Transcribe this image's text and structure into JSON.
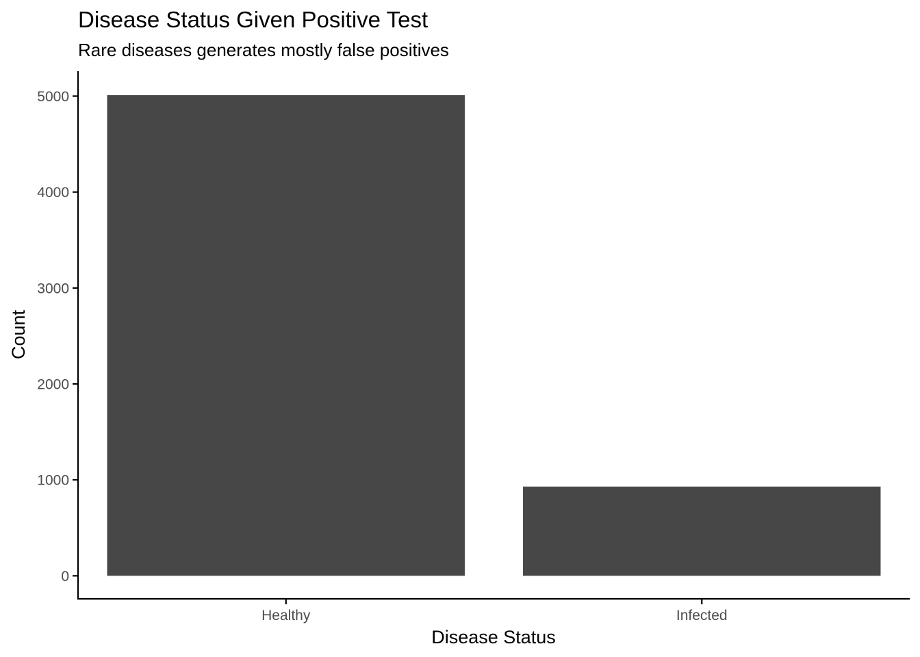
{
  "chart_data": {
    "type": "bar",
    "title": "Disease Status Given Positive Test",
    "subtitle": "Rare diseases generates mostly false positives",
    "xlabel": "Disease Status",
    "ylabel": "Count",
    "categories": [
      "Healthy",
      "Infected"
    ],
    "values": [
      5010,
      930
    ],
    "ylim": [
      -240,
      5260
    ],
    "yticks": [
      0,
      1000,
      2000,
      3000,
      4000,
      5000
    ],
    "grid": false,
    "legend": "none",
    "bar_color": "#474747"
  }
}
